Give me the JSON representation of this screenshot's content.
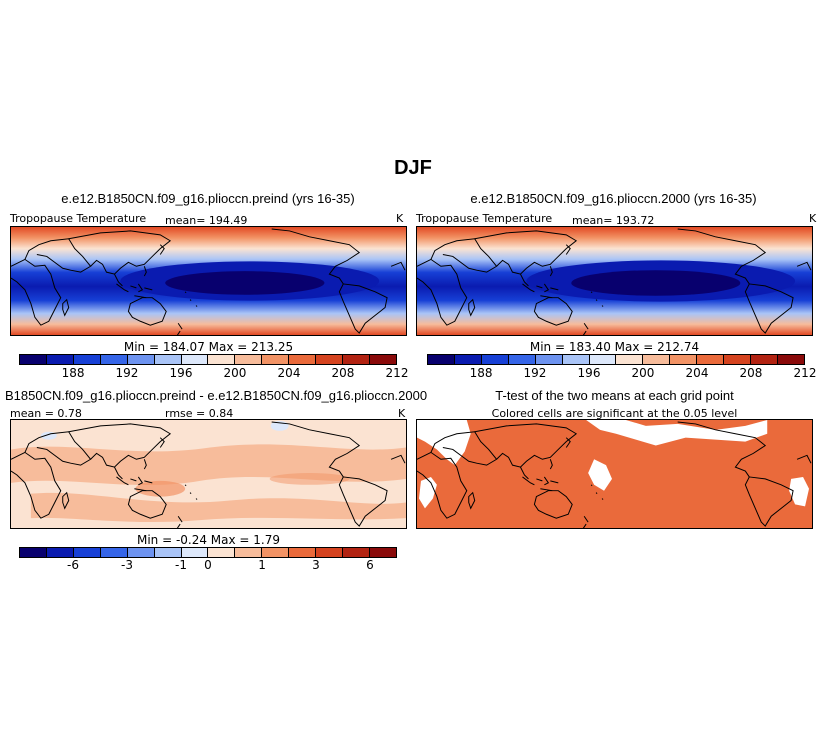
{
  "title": "DJF",
  "panels": [
    {
      "title": "e.e12.B1850CN.f09_g16.plioccn.preind (yrs 16-35)",
      "variable": "Tropopause Temperature",
      "mean_label": "mean= 194.49",
      "units": "K",
      "minmax": "Min = 184.07  Max = 213.25",
      "colorbar": {
        "colors": [
          "#08006e",
          "#0a1bb0",
          "#1740d6",
          "#3565e8",
          "#6d93f0",
          "#a9c4f7",
          "#dde8fb",
          "#fbe3d2",
          "#f7bc9b",
          "#f29365",
          "#ea6a3b",
          "#d5431f",
          "#b22312",
          "#8a0a0a"
        ],
        "tick_labels": [
          "188",
          "192",
          "196",
          "200",
          "204",
          "208",
          "212"
        ]
      },
      "map_data": {
        "projection": "cylindrical-equidistant",
        "lon_range": [
          0,
          360
        ],
        "lat_range": [
          -60,
          60
        ],
        "field": "tropopause temperature",
        "min": 184.07,
        "max": 213.25,
        "mean": 194.49
      }
    },
    {
      "title": "e.e12.B1850CN.f09_g16.plioccn.2000 (yrs 16-35)",
      "variable": "Tropopause Temperature",
      "mean_label": "mean= 193.72",
      "units": "K",
      "minmax": "Min = 183.40  Max = 212.74",
      "colorbar": {
        "colors": [
          "#08006e",
          "#0a1bb0",
          "#1740d6",
          "#3565e8",
          "#6d93f0",
          "#a9c4f7",
          "#dde8fb",
          "#fbe3d2",
          "#f7bc9b",
          "#f29365",
          "#ea6a3b",
          "#d5431f",
          "#b22312",
          "#8a0a0a"
        ],
        "tick_labels": [
          "188",
          "192",
          "196",
          "200",
          "204",
          "208",
          "212"
        ]
      },
      "map_data": {
        "projection": "cylindrical-equidistant",
        "lon_range": [
          0,
          360
        ],
        "lat_range": [
          -60,
          60
        ],
        "field": "tropopause temperature",
        "min": 183.4,
        "max": 212.74,
        "mean": 193.72
      }
    },
    {
      "title": "B1850CN.f09_g16.plioccn.preind - e.e12.B1850CN.f09_g16.plioccn.2000",
      "mean_label": "mean =   0.78",
      "rmse_label": "rmse =   0.84",
      "units": "K",
      "minmax": "Min =   -0.24  Max =   1.79",
      "colorbar": {
        "colors": [
          "#08006e",
          "#0a1bb0",
          "#1740d6",
          "#3565e8",
          "#6d93f0",
          "#a9c4f7",
          "#dde8fb",
          "#fbe3d2",
          "#f7bc9b",
          "#f29365",
          "#ea6a3b",
          "#d5431f",
          "#b22312",
          "#8a0a0a"
        ],
        "tick_labels": [
          "-6",
          "-3",
          "-1",
          "0",
          "1",
          "3",
          "6"
        ]
      },
      "map_data": {
        "projection": "cylindrical-equidistant",
        "lon_range": [
          0,
          360
        ],
        "lat_range": [
          -60,
          60
        ],
        "field": "difference",
        "min": -0.24,
        "max": 1.79,
        "mean": 0.78,
        "rmse": 0.84
      }
    },
    {
      "title": "T-test of the two means at each grid point",
      "subtitle": "Colored cells are significant at the 0.05 level",
      "significant_color": "#ea6a3b",
      "map_data": {
        "projection": "cylindrical-equidistant",
        "lon_range": [
          0,
          360
        ],
        "lat_range": [
          -60,
          60
        ],
        "field": "significance mask"
      }
    }
  ]
}
